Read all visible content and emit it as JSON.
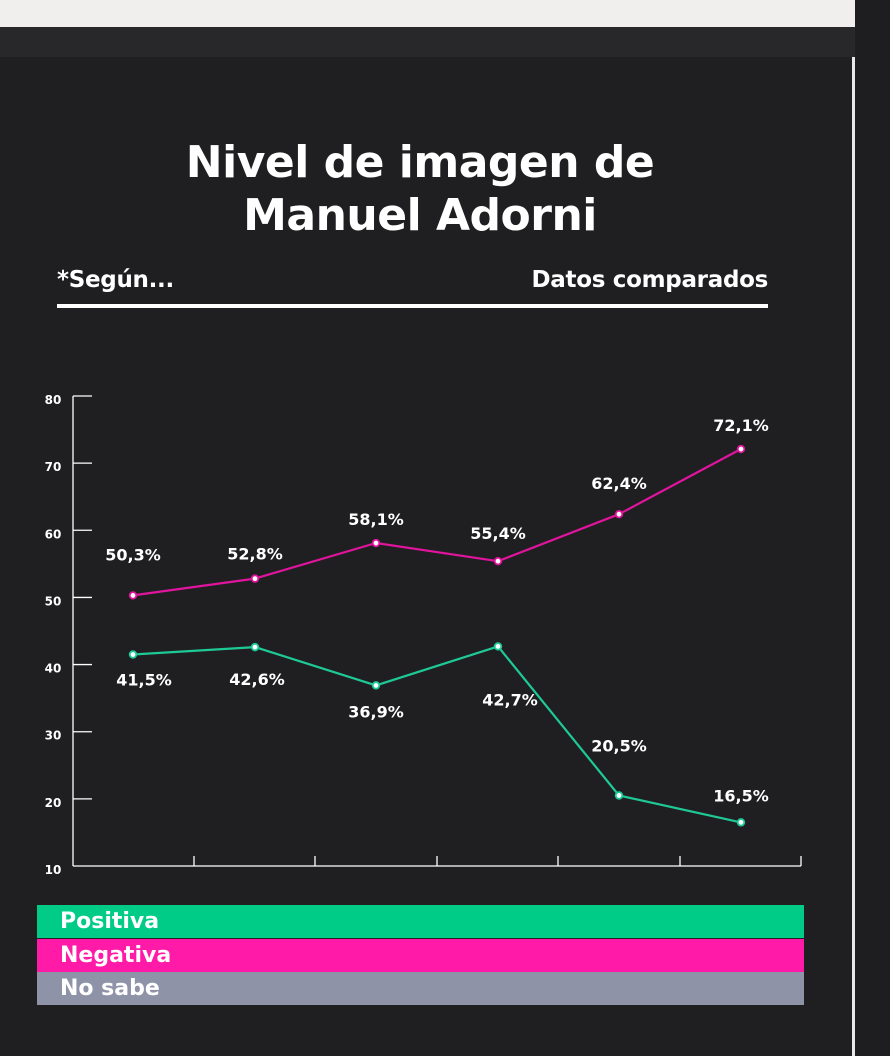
{
  "header": {
    "title_line1": "Nivel de imagen de",
    "title_line2": "Manuel Adorni",
    "note": "*Según...",
    "subtitle": "Datos comparados"
  },
  "colors": {
    "positiva": "#00cc88",
    "negativa": "#ff1aa7",
    "no_sabe": "#8e93a8",
    "line_positiva": "#1fc995",
    "line_negativa": "#e0149d"
  },
  "chart_data": {
    "type": "line",
    "x": [
      1,
      2,
      3,
      4,
      5,
      6
    ],
    "ylim": [
      10,
      80
    ],
    "yticks": [
      "80",
      "70",
      "60",
      "50",
      "40",
      "30",
      "20",
      "10"
    ],
    "series": [
      {
        "name": "Negativa",
        "values": [
          50.3,
          52.8,
          58.1,
          55.4,
          62.4,
          72.1
        ],
        "labels": [
          "50,3%",
          "52,8%",
          "58,1%",
          "55,4%",
          "62,4%",
          "72,1%"
        ]
      },
      {
        "name": "Positiva",
        "values": [
          41.5,
          42.6,
          36.9,
          42.7,
          20.5,
          16.5
        ],
        "labels": [
          "41,5%",
          "42,6%",
          "36,9%",
          "42,7%",
          "20,5%",
          "16,5%"
        ]
      }
    ],
    "legend": [
      "Positiva",
      "Negativa",
      "No sabe"
    ]
  },
  "legend": {
    "positiva": "Positiva",
    "negativa": "Negativa",
    "no_sabe": "No sabe"
  }
}
